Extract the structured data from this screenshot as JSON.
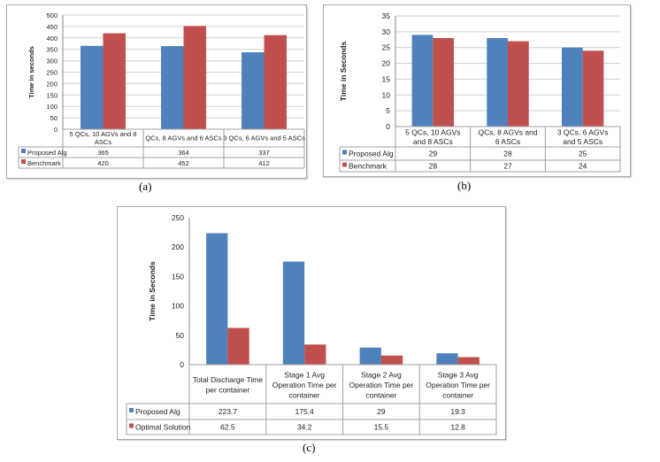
{
  "colors": {
    "proposed": "#4f81bd",
    "second": "#c0504d",
    "grid": "#d0d0d0",
    "table_border": "#a0a0a0"
  },
  "chart_data": [
    {
      "type": "bar",
      "caption": "(a)",
      "ylabel": "Time in seconds",
      "ylim": [
        0,
        500
      ],
      "yticks": [
        0,
        50,
        100,
        150,
        200,
        250,
        300,
        350,
        400,
        450,
        500
      ],
      "grid": true,
      "legend": "data-table",
      "categories": [
        [
          "5 QCs, 10 AGVs and 8",
          "ASCs"
        ],
        [
          "QCs, 8 AGVs and 6 ASCs"
        ],
        [
          "3 QCs, 6 AGVs and 5 ASCs"
        ]
      ],
      "series": [
        {
          "name": "Proposed Alg",
          "values": [
            365,
            364,
            337
          ],
          "labels": [
            "365",
            "364",
            "337"
          ]
        },
        {
          "name": "Benchmark",
          "values": [
            420,
            452,
            412
          ],
          "labels": [
            "420",
            "452",
            "412"
          ]
        }
      ]
    },
    {
      "type": "bar",
      "caption": "(b)",
      "ylabel": "Time in Seconds",
      "ylim": [
        0,
        35
      ],
      "yticks": [
        0,
        5,
        10,
        15,
        20,
        25,
        30,
        35
      ],
      "grid": true,
      "legend": "data-table",
      "categories": [
        [
          "5 QCs, 10 AGVs",
          "and 8 ASCs"
        ],
        [
          "QCs, 8 AGVs and",
          "6 ASCs"
        ],
        [
          "3 QCs, 6 AGVs",
          "and 5 ASCs"
        ]
      ],
      "series": [
        {
          "name": "Proposed Alg",
          "values": [
            29,
            28,
            25
          ],
          "labels": [
            "29",
            "28",
            "25"
          ]
        },
        {
          "name": "Benchmark",
          "values": [
            28,
            27,
            24
          ],
          "labels": [
            "28",
            "27",
            "24"
          ]
        }
      ]
    },
    {
      "type": "bar",
      "caption": "(c)",
      "ylabel": "Time in Seconds",
      "ylim": [
        0,
        250
      ],
      "yticks": [
        0,
        50,
        100,
        150,
        200,
        250
      ],
      "grid": false,
      "legend": "data-table",
      "categories": [
        [
          "Total Discharge Time",
          "per container"
        ],
        [
          "Stage 1 Avg",
          "Operation Time per",
          "container"
        ],
        [
          "Stage 2 Avg",
          "Operation Time per",
          "container"
        ],
        [
          "Stage 3 Avg",
          "Operation Time per",
          "container"
        ]
      ],
      "series": [
        {
          "name": "Proposed Alg",
          "values": [
            223.7,
            175.4,
            29,
            19.3
          ],
          "labels": [
            "223.7",
            "175.4",
            "29",
            "19.3"
          ]
        },
        {
          "name": "Optimal Solution",
          "values": [
            62.5,
            34.2,
            15.5,
            12.8
          ],
          "labels": [
            "62.5",
            "34.2",
            "15.5",
            "12.8"
          ]
        }
      ]
    }
  ]
}
